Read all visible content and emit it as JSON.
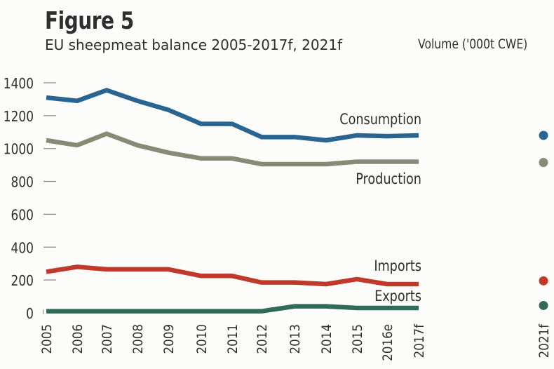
{
  "header": {
    "title": "Figure 5",
    "subtitle": "EU sheepmeat balance 2005-2017f, 2021f",
    "unit": "Volume ('000t CWE)"
  },
  "chart_data": {
    "type": "line",
    "title": "EU sheepmeat balance 2005-2017f, 2021f",
    "ylabel": "Volume ('000t CWE)",
    "xlabel": "",
    "ylim": [
      0,
      1400
    ],
    "yticks": [
      0,
      200,
      400,
      600,
      800,
      1000,
      1200,
      1400
    ],
    "grid": false,
    "legend": "inline-labels-right",
    "categories": [
      "2005",
      "2006",
      "2007",
      "2008",
      "2009",
      "2010",
      "2011",
      "2012",
      "2013",
      "2014",
      "2015",
      "2016e",
      "2017f"
    ],
    "forecast_category": "2021f",
    "series": [
      {
        "name": "Consumption",
        "color": "#2a6591",
        "values": [
          1310,
          1290,
          1355,
          1290,
          1235,
          1150,
          1150,
          1070,
          1070,
          1050,
          1080,
          1075,
          1080
        ],
        "forecast_2021f": 1080
      },
      {
        "name": "Production",
        "color": "#878b75",
        "values": [
          1050,
          1020,
          1090,
          1020,
          975,
          940,
          940,
          905,
          905,
          905,
          920,
          920,
          920
        ],
        "forecast_2021f": 915
      },
      {
        "name": "Imports",
        "color": "#bf3a2b",
        "values": [
          250,
          280,
          265,
          265,
          265,
          225,
          225,
          185,
          185,
          175,
          205,
          175,
          175
        ],
        "forecast_2021f": 195
      },
      {
        "name": "Exports",
        "color": "#2f6b57",
        "values": [
          10,
          10,
          10,
          10,
          10,
          10,
          10,
          10,
          40,
          40,
          30,
          30,
          30
        ],
        "forecast_2021f": 45
      }
    ]
  }
}
